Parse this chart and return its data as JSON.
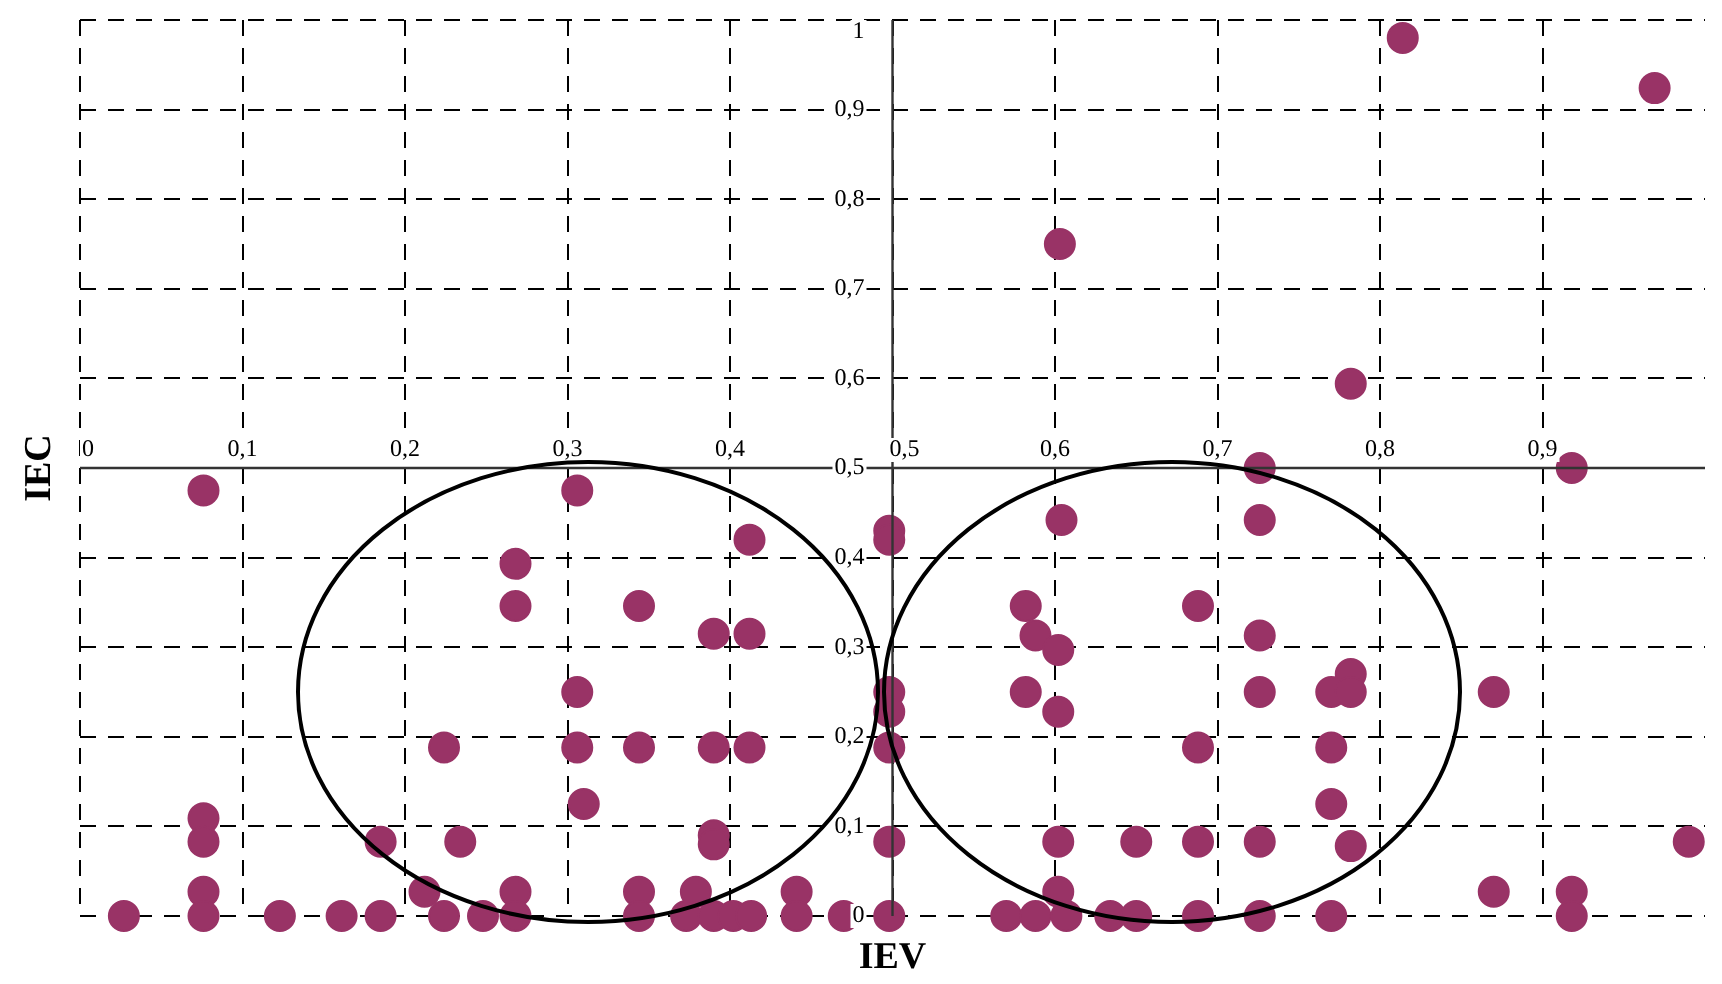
{
  "chart_data": {
    "type": "scatter",
    "xlabel": "IEV",
    "ylabel": "IEC",
    "marker": "circle",
    "grid": true,
    "xlim": [
      0,
      1
    ],
    "ylim": [
      0,
      1
    ],
    "xticks": [
      0,
      {
        "value": 0.1,
        "label": "0,1"
      },
      {
        "value": 0.2,
        "label": "0,2"
      },
      {
        "value": 0.3,
        "label": "0,3"
      },
      {
        "value": 0.4,
        "label": "0,4"
      },
      {
        "value": 0.5,
        "label": "0,5"
      },
      {
        "value": 0.6,
        "label": "0,6"
      },
      {
        "value": 0.7,
        "label": "0,7"
      },
      {
        "value": 0.8,
        "label": "0,8"
      },
      {
        "value": 0.9,
        "label": "0,9"
      }
    ],
    "yticks": [
      0,
      {
        "value": 0.1,
        "label": "0,1"
      },
      {
        "value": 0.2,
        "label": "0,2"
      },
      {
        "value": 0.3,
        "label": "0,3"
      },
      {
        "value": 0.4,
        "label": "0,4"
      },
      {
        "value": 0.5,
        "label": "0,5"
      },
      {
        "value": 0.6,
        "label": "0,6"
      },
      {
        "value": 0.7,
        "label": "0,7"
      },
      {
        "value": 0.8,
        "label": "0,8"
      },
      {
        "value": 0.9,
        "label": "0,9"
      },
      1
    ],
    "series": [
      {
        "color": "#993366",
        "x": [
          0.814,
          0.969,
          0.603,
          0.782,
          0.726,
          0.918,
          0.076,
          0.306,
          0.604,
          0.726,
          0.412,
          0.498,
          0.498,
          0.268,
          0.268,
          0.344,
          0.39,
          0.412,
          0.306,
          0.224,
          0.306,
          0.344,
          0.39,
          0.412,
          0.31,
          0.076,
          0.076,
          0.185,
          0.234,
          0.39,
          0.39,
          0.076,
          0.212,
          0.268,
          0.344,
          0.379,
          0.441,
          0.027,
          0.076,
          0.123,
          0.161,
          0.185,
          0.224,
          0.248,
          0.268,
          0.344,
          0.373,
          0.39,
          0.402,
          0.413,
          0.441,
          0.47,
          0.498,
          0.57,
          0.588,
          0.607,
          0.634,
          0.65,
          0.688,
          0.726,
          0.77,
          0.498,
          0.498,
          0.498,
          0.498,
          0.582,
          0.588,
          0.602,
          0.582,
          0.602,
          0.688,
          0.726,
          0.726,
          0.77,
          0.782,
          0.782,
          0.87,
          0.688,
          0.77,
          0.77,
          0.602,
          0.65,
          0.688,
          0.726,
          0.782,
          0.99,
          0.602,
          0.87,
          0.918,
          0.918
        ],
        "values": [
          0.98,
          0.924,
          0.75,
          0.594,
          0.5,
          0.5,
          0.475,
          0.475,
          0.442,
          0.442,
          0.42,
          0.43,
          0.42,
          0.393,
          0.346,
          0.346,
          0.315,
          0.315,
          0.25,
          0.188,
          0.188,
          0.188,
          0.188,
          0.188,
          0.125,
          0.109,
          0.083,
          0.083,
          0.083,
          0.09,
          0.08,
          0.027,
          0.027,
          0.027,
          0.027,
          0.027,
          0.027,
          0,
          0,
          0,
          0,
          0,
          0,
          0,
          0,
          0,
          0,
          0,
          0,
          0,
          0,
          0,
          0,
          0,
          0,
          0,
          0,
          0,
          0,
          0,
          0,
          0.25,
          0.228,
          0.188,
          0.083,
          0.346,
          0.313,
          0.297,
          0.25,
          0.228,
          0.346,
          0.313,
          0.25,
          0.25,
          0.27,
          0.25,
          0.25,
          0.188,
          0.188,
          0.125,
          0.083,
          0.083,
          0.083,
          0.083,
          0.078,
          0.083,
          0.027,
          0.027,
          0.027,
          0
        ]
      }
    ]
  }
}
